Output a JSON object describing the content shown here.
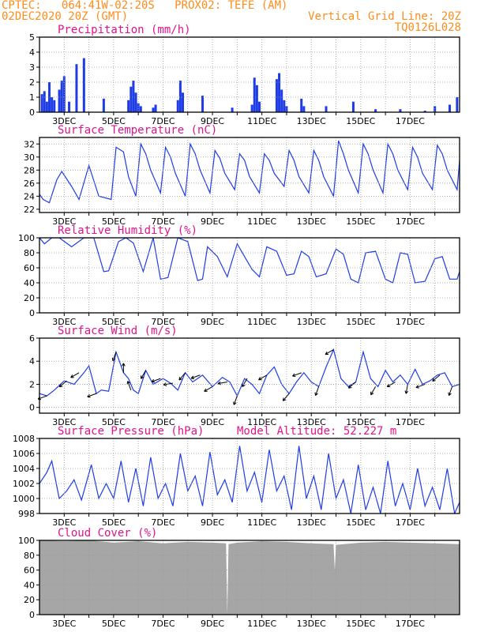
{
  "header": {
    "line1_left": "CPTEC:   064:41W-02:20S   PROX02: TEFE (AM)",
    "line2_left": "02DEC2020 20Z (GMT)",
    "line2_right": "Vertical Grid Line: 20Z",
    "line3_right": "TQ0126L028"
  },
  "colors": {
    "header": "#ff8c1a",
    "title": "#e0148c",
    "series": "#1e3ce6",
    "cloud": "#a6a6a6",
    "grid": "#9a9a9a"
  },
  "chart_data": [
    {
      "id": "precip",
      "type": "bar",
      "title": "Precipitation (mm/h)",
      "ylim": [
        0,
        5
      ],
      "yticks": [
        0,
        1,
        2,
        3,
        4,
        5
      ],
      "xticks": [
        "3DEC",
        "5DEC",
        "7DEC",
        "9DEC",
        "11DEC",
        "13DEC",
        "15DEC",
        "17DEC"
      ],
      "x_days": [
        0.1,
        0.2,
        0.3,
        0.4,
        0.5,
        0.6,
        0.8,
        0.9,
        1.0,
        1.2,
        1.5,
        1.8,
        2.6,
        3.6,
        3.7,
        3.8,
        3.9,
        4.0,
        4.1,
        4.6,
        4.7,
        5.6,
        5.7,
        5.8,
        6.6,
        7.8,
        8.6,
        8.7,
        8.8,
        8.9,
        9.6,
        9.7,
        9.8,
        9.9,
        10.0,
        10.6,
        10.7,
        11.6,
        12.7,
        13.6,
        14.6,
        15.6,
        16.0,
        16.6,
        16.9
      ],
      "values": [
        1.2,
        1.4,
        0.7,
        2.0,
        1.0,
        0.8,
        1.5,
        2.1,
        2.4,
        0.7,
        3.2,
        3.6,
        0.9,
        0.8,
        1.7,
        2.1,
        1.3,
        0.6,
        0.4,
        0.3,
        0.5,
        0.8,
        2.1,
        1.3,
        1.1,
        0.3,
        0.5,
        2.3,
        1.8,
        0.7,
        2.2,
        2.6,
        1.5,
        0.8,
        0.4,
        0.9,
        0.4,
        0.4,
        0.7,
        0.2,
        0.2,
        0.1,
        0.4,
        0.5,
        1.0
      ]
    },
    {
      "id": "temp",
      "type": "line",
      "title": "Surface Temperature (nC)",
      "ylim": [
        21.5,
        33
      ],
      "yticks": [
        22,
        24,
        26,
        28,
        30,
        32
      ],
      "xticks": [
        "3DEC",
        "5DEC",
        "7DEC",
        "9DEC",
        "11DEC",
        "13DEC",
        "15DEC",
        "17DEC"
      ],
      "x_days": [
        0,
        0.15,
        0.4,
        0.7,
        0.9,
        1.3,
        1.6,
        2.0,
        2.4,
        2.9,
        3.1,
        3.4,
        3.6,
        3.9,
        4.1,
        4.3,
        4.5,
        4.9,
        5.1,
        5.3,
        5.5,
        5.9,
        6.1,
        6.3,
        6.5,
        6.9,
        7.1,
        7.3,
        7.5,
        7.9,
        8.1,
        8.3,
        8.5,
        8.9,
        9.1,
        9.3,
        9.5,
        9.9,
        10.1,
        10.3,
        10.5,
        10.9,
        11.1,
        11.3,
        11.5,
        11.9,
        12.1,
        12.3,
        12.5,
        12.9,
        13.1,
        13.3,
        13.5,
        13.9,
        14.1,
        14.3,
        14.5,
        14.9,
        15.1,
        15.3,
        15.5,
        15.9,
        16.1,
        16.3,
        16.5,
        16.9,
        17.0
      ],
      "values": [
        24.3,
        23.5,
        23.0,
        26.5,
        27.8,
        25.5,
        23.5,
        28.7,
        24.0,
        23.5,
        31.5,
        30.8,
        27.0,
        24.0,
        32.0,
        30.5,
        28.0,
        24.5,
        31.5,
        30.0,
        27.5,
        24.0,
        32.0,
        30.5,
        28.0,
        24.5,
        31.0,
        29.8,
        27.5,
        25.0,
        30.5,
        29.5,
        27.0,
        24.5,
        30.5,
        29.5,
        27.5,
        25.5,
        31.0,
        29.5,
        27.0,
        24.5,
        31.0,
        29.5,
        27.0,
        24.0,
        32.5,
        30.5,
        28.0,
        24.5,
        32.0,
        30.5,
        28.0,
        24.5,
        32.0,
        30.5,
        28.0,
        25.0,
        31.5,
        30.0,
        27.5,
        25.0,
        31.8,
        30.5,
        28.0,
        25.0,
        29.5
      ]
    },
    {
      "id": "rh",
      "type": "line",
      "title": "Relative Humidity (%)",
      "ylim": [
        0,
        100
      ],
      "yticks": [
        0,
        20,
        40,
        60,
        80,
        100
      ],
      "xticks": [
        "3DEC",
        "5DEC",
        "7DEC",
        "9DEC",
        "11DEC",
        "13DEC",
        "15DEC",
        "17DEC"
      ],
      "x_days": [
        0,
        0.2,
        0.5,
        0.8,
        1.3,
        1.8,
        2.2,
        2.6,
        2.8,
        3.2,
        3.5,
        3.8,
        4.2,
        4.6,
        4.9,
        5.2,
        5.6,
        6.0,
        6.4,
        6.6,
        6.8,
        7.2,
        7.6,
        8.0,
        8.3,
        8.6,
        8.9,
        9.2,
        9.6,
        10.0,
        10.3,
        10.6,
        10.9,
        11.2,
        11.6,
        12.0,
        12.3,
        12.6,
        12.9,
        13.2,
        13.6,
        14.0,
        14.3,
        14.6,
        14.9,
        15.2,
        15.6,
        16.0,
        16.3,
        16.6,
        16.9,
        17.0
      ],
      "values": [
        100,
        92,
        100,
        100,
        88,
        100,
        100,
        55,
        56,
        95,
        100,
        93,
        55,
        100,
        45,
        47,
        100,
        95,
        43,
        45,
        88,
        75,
        48,
        92,
        75,
        58,
        48,
        88,
        82,
        50,
        52,
        82,
        75,
        48,
        52,
        85,
        78,
        45,
        40,
        80,
        82,
        45,
        40,
        80,
        78,
        40,
        42,
        72,
        75,
        45,
        45,
        55
      ]
    },
    {
      "id": "wind",
      "type": "line",
      "title": "Surface Wind (m/s)",
      "ylim": [
        -0.5,
        6
      ],
      "yticks": [
        0,
        2,
        4,
        6
      ],
      "xticks": [
        "3DEC",
        "5DEC",
        "7DEC",
        "9DEC",
        "11DEC",
        "13DEC",
        "15DEC",
        "17DEC"
      ],
      "x_days": [
        0,
        0.3,
        0.6,
        1.0,
        1.4,
        1.8,
        2.0,
        2.3,
        2.5,
        2.8,
        3.1,
        3.4,
        3.6,
        3.8,
        4.0,
        4.3,
        4.6,
        5.0,
        5.3,
        5.6,
        5.9,
        6.2,
        6.6,
        7.0,
        7.4,
        7.7,
        8.0,
        8.3,
        8.6,
        8.9,
        9.2,
        9.5,
        9.8,
        10.1,
        10.4,
        10.7,
        11.0,
        11.3,
        11.6,
        11.9,
        12.2,
        12.5,
        12.8,
        13.1,
        13.4,
        13.7,
        14.0,
        14.3,
        14.6,
        14.9,
        15.2,
        15.5,
        15.8,
        16.1,
        16.4,
        16.7,
        17.0
      ],
      "values": [
        1.2,
        1.0,
        1.5,
        2.3,
        2.0,
        3.0,
        3.6,
        1.2,
        1.5,
        1.4,
        4.8,
        3.0,
        2.5,
        1.5,
        1.2,
        3.2,
        2.0,
        2.5,
        2.1,
        1.5,
        3.0,
        2.2,
        2.8,
        1.8,
        2.6,
        2.2,
        1.0,
        2.5,
        2.0,
        1.2,
        2.8,
        3.5,
        2.0,
        1.2,
        2.2,
        3.0,
        2.2,
        1.8,
        3.5,
        5.0,
        2.5,
        1.8,
        2.2,
        4.8,
        2.5,
        1.8,
        3.2,
        2.2,
        2.8,
        2.0,
        3.3,
        2.0,
        2.3,
        2.8,
        3.0,
        1.8,
        2.0
      ],
      "arrow_days": [
        0.3,
        1.1,
        1.6,
        2.3,
        3.1,
        3.4,
        3.7,
        4.3,
        4.9,
        5.4,
        5.9,
        6.5,
        7.0,
        7.6,
        8.0,
        8.4,
        9.2,
        10.1,
        10.6,
        11.3,
        11.9,
        12.8,
        13.6,
        14.4,
        14.9,
        15.6,
        16.2,
        16.7
      ],
      "arrow_angles_deg": [
        200,
        220,
        210,
        200,
        250,
        90,
        110,
        240,
        200,
        190,
        230,
        200,
        210,
        190,
        250,
        240,
        210,
        230,
        200,
        250,
        210,
        220,
        240,
        210,
        260,
        200,
        220,
        250
      ]
    },
    {
      "id": "pressure",
      "type": "line",
      "title": "Surface Pressure (hPa)",
      "annotation": "Model Altitude: 52.227 m",
      "ylim": [
        998,
        1008
      ],
      "yticks": [
        998,
        1000,
        1002,
        1004,
        1006,
        1008
      ],
      "xticks": [
        "3DEC",
        "5DEC",
        "7DEC",
        "9DEC",
        "11DEC",
        "13DEC",
        "15DEC",
        "17DEC"
      ],
      "x_days": [
        0,
        0.3,
        0.5,
        0.8,
        1.1,
        1.4,
        1.7,
        2.1,
        2.4,
        2.7,
        3.0,
        3.3,
        3.6,
        3.9,
        4.2,
        4.5,
        4.8,
        5.1,
        5.4,
        5.7,
        6.0,
        6.3,
        6.6,
        6.9,
        7.2,
        7.5,
        7.8,
        8.1,
        8.4,
        8.7,
        9.0,
        9.3,
        9.6,
        9.9,
        10.2,
        10.5,
        10.8,
        11.1,
        11.4,
        11.7,
        12.0,
        12.3,
        12.6,
        12.9,
        13.2,
        13.5,
        13.8,
        14.1,
        14.4,
        14.7,
        15.0,
        15.3,
        15.6,
        15.9,
        16.2,
        16.5,
        16.8,
        17.0
      ],
      "values": [
        1002.0,
        1003.5,
        1005.0,
        1000.0,
        1001.0,
        1002.5,
        999.8,
        1004.5,
        1000.0,
        1002.0,
        1000.0,
        1005.0,
        999.5,
        1004.0,
        999.0,
        1005.5,
        1000.0,
        1002.0,
        999.0,
        1006.0,
        1001.0,
        1003.0,
        999.0,
        1006.2,
        1000.5,
        1002.5,
        999.5,
        1007.0,
        1001.0,
        1003.5,
        999.5,
        1006.5,
        1001.0,
        1003.0,
        998.5,
        1007.0,
        1000.0,
        1003.0,
        998.5,
        1006.0,
        1000.0,
        1002.5,
        998.0,
        1004.5,
        998.5,
        1001.5,
        998.0,
        1005.0,
        999.0,
        1002.0,
        998.5,
        1004.0,
        999.0,
        1001.5,
        998.5,
        1004.0,
        998.0,
        999.5
      ]
    },
    {
      "id": "cloud",
      "type": "area",
      "title": "Cloud Cover (%)",
      "ylim": [
        0,
        100
      ],
      "yticks": [
        0,
        20,
        40,
        60,
        80,
        100
      ],
      "xticks": [
        "3DEC",
        "5DEC",
        "7DEC",
        "9DEC",
        "11DEC",
        "13DEC",
        "15DEC",
        "17DEC"
      ],
      "x_days": [
        0,
        1.0,
        2.0,
        3.0,
        4.0,
        5.0,
        6.0,
        7.0,
        7.55,
        7.6,
        7.65,
        8.0,
        9.0,
        10.0,
        11.0,
        11.9,
        11.95,
        12.0,
        13.0,
        14.0,
        15.0,
        16.0,
        17.0
      ],
      "values": [
        100,
        99,
        100,
        97,
        99,
        96,
        98,
        97,
        96,
        0,
        95,
        97,
        99,
        98,
        96,
        95,
        60,
        94,
        97,
        98,
        97,
        96,
        95
      ]
    }
  ]
}
